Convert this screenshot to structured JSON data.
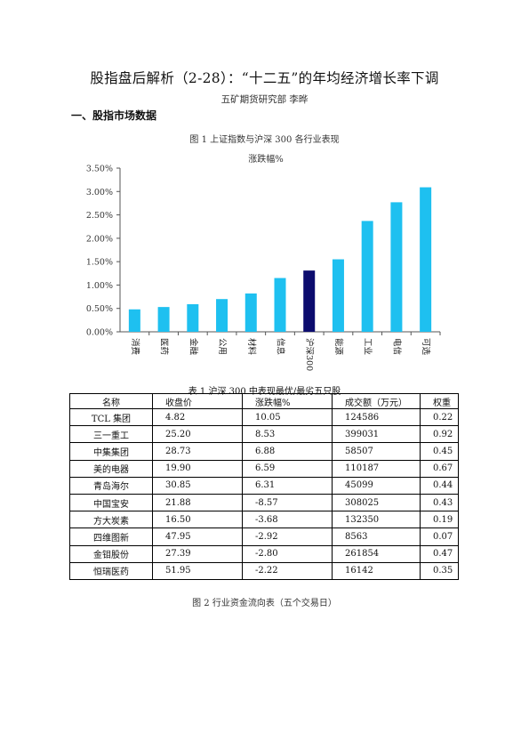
{
  "title": "股指盘后解析（2-28）：“十二五”的年均经济增长率下调",
  "author": "五矿期货研究部    李晔",
  "section_heading": "一、股指市场数据",
  "figure1_caption": "图 1    上证指数与沪深 300 各行业表现",
  "chart_data": {
    "type": "bar",
    "title": "涨跌幅%",
    "categories": [
      "消费",
      "医药",
      "金融",
      "公用",
      "材料",
      "信息",
      "沪深300",
      "能源",
      "工业",
      "电信",
      "可选"
    ],
    "values": [
      0.48,
      0.53,
      0.59,
      0.7,
      0.82,
      1.15,
      1.31,
      1.55,
      2.37,
      2.77,
      3.09
    ],
    "ylim": [
      0,
      3.5
    ],
    "yticks": [
      "0.00%",
      "0.50%",
      "1.00%",
      "1.50%",
      "2.00%",
      "2.50%",
      "3.00%",
      "3.50%"
    ],
    "grid": false,
    "colors": {
      "default": "#1ec0f0",
      "highlight": "#0c0c6e",
      "highlight_category": "沪深300"
    }
  },
  "table1": {
    "caption": "表 1    沪深 300 中表现最优/最劣五只股",
    "headers": [
      "名称",
      "收盘价",
      "涨跌幅%",
      "成交额（万元）",
      "权重"
    ],
    "rows": [
      [
        "TCL 集团",
        "4.82",
        "10.05",
        "124586",
        "0.22"
      ],
      [
        "三一重工",
        "25.20",
        "8.53",
        "399031",
        "0.92"
      ],
      [
        "中集集团",
        "28.73",
        "6.88",
        "58507",
        "0.45"
      ],
      [
        "美的电器",
        "19.90",
        "6.59",
        "110187",
        "0.67"
      ],
      [
        "青岛海尔",
        "30.85",
        "6.31",
        "45099",
        "0.44"
      ],
      [
        "中国宝安",
        "21.88",
        "-8.57",
        "308025",
        "0.43"
      ],
      [
        "方大炭素",
        "16.50",
        "-3.68",
        "132350",
        "0.19"
      ],
      [
        "四维图新",
        "47.95",
        "-2.92",
        "8563",
        "0.07"
      ],
      [
        "金钼股份",
        "27.39",
        "-2.80",
        "261854",
        "0.47"
      ],
      [
        "恒瑞医药",
        "51.95",
        "-2.22",
        "16142",
        "0.35"
      ]
    ]
  },
  "figure2_caption": "图 2    行业资金流向表（五个交易日）"
}
